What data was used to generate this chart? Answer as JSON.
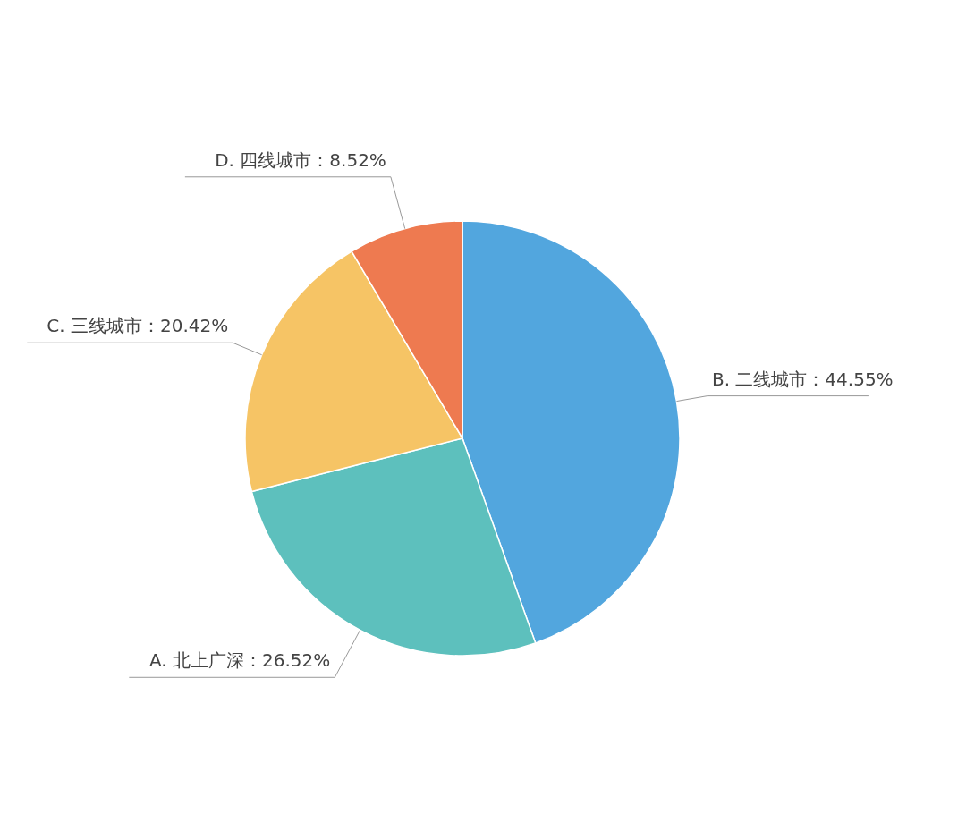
{
  "chart_data": {
    "type": "pie",
    "categories": [
      "B. 二线城市",
      "A. 北上广深",
      "C. 三线城市",
      "D. 四线城市"
    ],
    "values": [
      44.55,
      26.52,
      20.42,
      8.52
    ],
    "value_labels": [
      "44.55%",
      "26.52%",
      "20.42%",
      "8.52%"
    ],
    "colors": [
      "#52a6de",
      "#5dc0bd",
      "#f6c465",
      "#ee7a50"
    ]
  }
}
